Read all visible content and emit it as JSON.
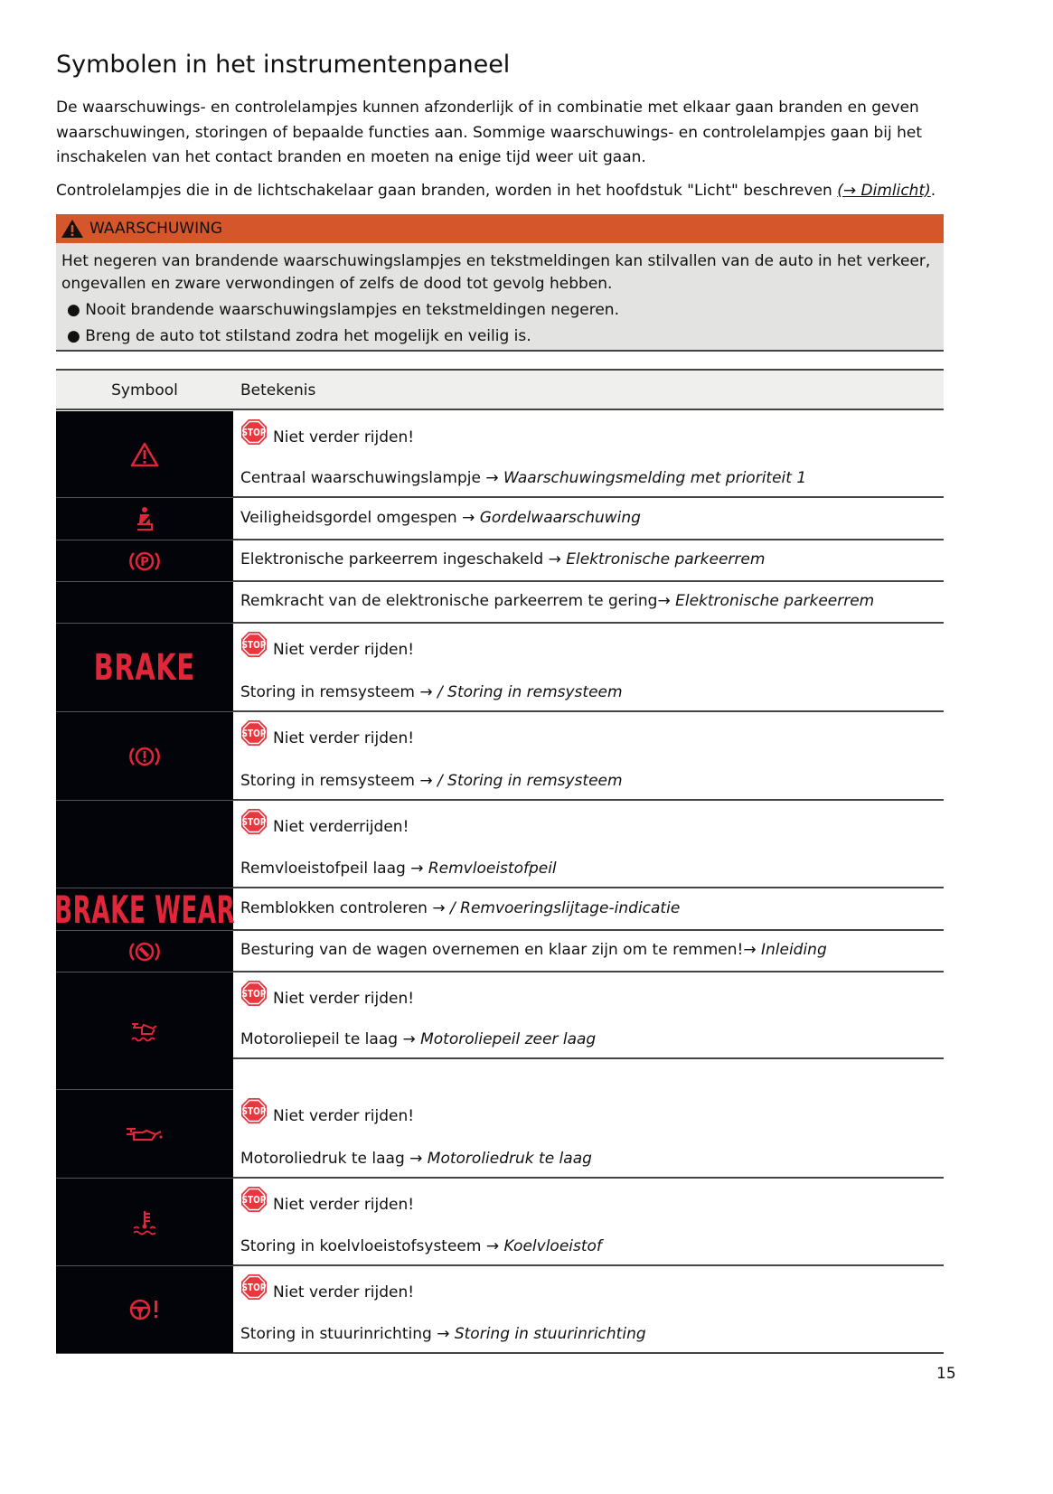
{
  "title": "Symbolen in het instrumentenpaneel",
  "intro": "De waarschuwings- en controlelampjes kunnen afzonderlijk of in combinatie met elkaar gaan branden en geven waarschuwingen, storingen of bepaalde functies aan. Sommige waarschuwings- en controlelampjes gaan bij het inschakelen van het contact branden en moeten na enige tijd weer uit gaan.",
  "intro2": "Controlelampjes die in de lichtschakelaar gaan branden, worden in het hoofdstuk \"Licht\" beschreven ",
  "intro2_link": "(→ Dimlicht)",
  "intro2_end": ".",
  "warning": {
    "label": "WAARSCHUWING",
    "text": "Het negeren van brandende waarschuwingslampjes en tekstmeldingen kan stilvallen van de auto in het verkeer, ongevallen en zware verwondingen of zelfs de dood tot gevolg hebben.",
    "bullets": [
      "● Nooit brandende waarschuwingslampjes en tekstmeldingen negeren.",
      "● Breng de auto tot stilstand zodra het mogelijk en veilig is."
    ],
    "color": "#d5562a"
  },
  "table": {
    "headers": [
      "Symbool",
      "Betekenis"
    ],
    "stop_text": "STOP",
    "symbols": [
      {
        "icon": "warning-triangle-icon",
        "top": 0
      },
      {
        "icon": "seatbelt-icon"
      },
      {
        "icon": "parking-brake-icon"
      },
      {
        "icon": "none"
      },
      {
        "icon": "brake-text",
        "text": "BRAKE"
      },
      {
        "icon": "brake-system-icon"
      },
      {
        "icon": "none"
      },
      {
        "icon": "brake-wear-text",
        "text": "BRAKE WEAR"
      },
      {
        "icon": "driver-takeover-brake-icon"
      },
      {
        "icon": "oil-level-icon"
      },
      {
        "icon": "oil-pressure-icon"
      },
      {
        "icon": "coolant-icon"
      },
      {
        "icon": "steering-icon"
      }
    ],
    "rows": [
      {
        "stop": "Niet verder rijden!",
        "text": "Centraal waarschuwingslampje → ",
        "link": "Waarschuwingsmelding met prioriteit 1"
      },
      {
        "text": "Veiligheidsgordel omgespen → ",
        "link": "Gordelwaarschuwing"
      },
      {
        "text": "Elektronische parkeerrem ingeschakeld → ",
        "link": "Elektronische parkeerrem"
      },
      {
        "text": "Remkracht van de elektronische parkeerrem te gering→ ",
        "link": "Elektronische parkeerrem"
      },
      {
        "stop": "Niet verder rijden!",
        "text": "Storing in remsysteem → ",
        "link": "/ Storing in remsysteem"
      },
      {
        "stop": "Niet verder rijden!",
        "text": "Storing in remsysteem → ",
        "link": "/ Storing in remsysteem"
      },
      {
        "stop": "Niet verderrijden!",
        "text": "Remvloeistofpeil laag → ",
        "link": "Remvloeistofpeil"
      },
      {
        "text": "Remblokken controleren → ",
        "link": "/ Remvoeringslijtage-indicatie"
      },
      {
        "text": "Besturing van de wagen overnemen en klaar zijn om te remmen!→ ",
        "link": "Inleiding"
      },
      {
        "stop": "Niet verder rijden!",
        "text": "Motoroliepeil te laag → ",
        "link": "Motoroliepeil zeer laag"
      },
      {
        "stop": "Niet verder rijden!",
        "text": "Motoroliedruk te laag → ",
        "link": "Motoroliedruk te laag"
      },
      {
        "stop": "Niet verder rijden!",
        "text": "Storing in koelvloeistofsysteem → ",
        "link": "Koelvloeistof"
      },
      {
        "stop": "Niet verder rijden!",
        "text": "Storing in stuurinrichting → ",
        "link": "Storing in stuurinrichting"
      }
    ]
  },
  "page_number": "15",
  "colors": {
    "symbol_red": "#e2263a",
    "symbol_bg": "#03040a"
  }
}
